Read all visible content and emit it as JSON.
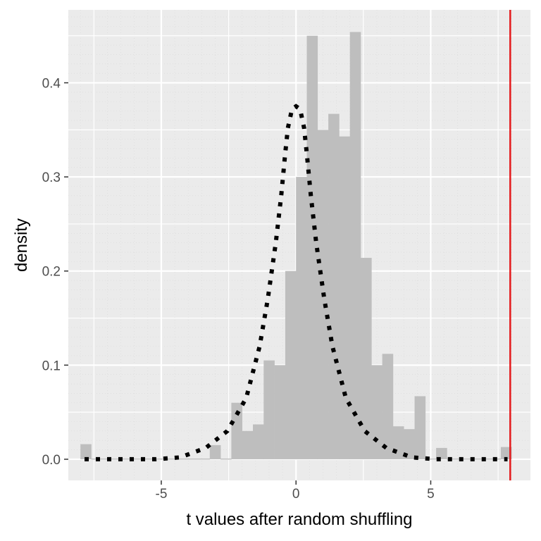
{
  "chart_data": {
    "type": "histogram",
    "title": "",
    "xlabel": "t values after random shuffling",
    "ylabel": "density",
    "xlim": [
      -8.45,
      8.7
    ],
    "ylim": [
      -0.0225,
      0.4775
    ],
    "x_ticks": [
      -5,
      0,
      5
    ],
    "x_tick_labels": [
      "-5",
      "0",
      "5"
    ],
    "y_ticks": [
      0.0,
      0.1,
      0.2,
      0.3,
      0.4
    ],
    "y_tick_labels": [
      "0.0",
      "0.1",
      "0.2",
      "0.3",
      "0.4"
    ],
    "grid": true,
    "histogram": {
      "bin_width": 0.4,
      "bins": [
        {
          "x0": -8.0,
          "x1": -7.6,
          "density": 0.016
        },
        {
          "x0": -7.6,
          "x1": -7.2,
          "density": 0.0
        },
        {
          "x0": -7.2,
          "x1": -6.8,
          "density": 0.0
        },
        {
          "x0": -6.8,
          "x1": -6.4,
          "density": 0.0
        },
        {
          "x0": -6.4,
          "x1": -6.0,
          "density": 0.0
        },
        {
          "x0": -6.0,
          "x1": -5.6,
          "density": 0.0
        },
        {
          "x0": -5.6,
          "x1": -5.2,
          "density": 0.0
        },
        {
          "x0": -5.2,
          "x1": -4.8,
          "density": 0.0
        },
        {
          "x0": -4.8,
          "x1": -4.4,
          "density": 0.0
        },
        {
          "x0": -4.4,
          "x1": -4.0,
          "density": 0.0
        },
        {
          "x0": -4.0,
          "x1": -3.6,
          "density": 0.0
        },
        {
          "x0": -3.6,
          "x1": -3.2,
          "density": 0.0
        },
        {
          "x0": -3.2,
          "x1": -2.8,
          "density": 0.015
        },
        {
          "x0": -2.8,
          "x1": -2.4,
          "density": 0.0
        },
        {
          "x0": -2.4,
          "x1": -2.0,
          "density": 0.06
        },
        {
          "x0": -2.0,
          "x1": -1.6,
          "density": 0.03
        },
        {
          "x0": -1.6,
          "x1": -1.2,
          "density": 0.037
        },
        {
          "x0": -1.2,
          "x1": -0.8,
          "density": 0.105
        },
        {
          "x0": -0.8,
          "x1": -0.4,
          "density": 0.1
        },
        {
          "x0": -0.4,
          "x1": 0.0,
          "density": 0.2
        },
        {
          "x0": 0.0,
          "x1": 0.4,
          "density": 0.3
        },
        {
          "x0": 0.4,
          "x1": 0.8,
          "density": 0.45
        },
        {
          "x0": 0.8,
          "x1": 1.2,
          "density": 0.35
        },
        {
          "x0": 1.2,
          "x1": 1.6,
          "density": 0.367
        },
        {
          "x0": 1.6,
          "x1": 2.0,
          "density": 0.343
        },
        {
          "x0": 2.0,
          "x1": 2.4,
          "density": 0.454
        },
        {
          "x0": 2.4,
          "x1": 2.8,
          "density": 0.214
        },
        {
          "x0": 2.8,
          "x1": 3.2,
          "density": 0.1
        },
        {
          "x0": 3.2,
          "x1": 3.6,
          "density": 0.112
        },
        {
          "x0": 3.6,
          "x1": 4.0,
          "density": 0.035
        },
        {
          "x0": 4.0,
          "x1": 4.4,
          "density": 0.032
        },
        {
          "x0": 4.4,
          "x1": 4.8,
          "density": 0.067
        },
        {
          "x0": 4.8,
          "x1": 5.2,
          "density": 0.0
        },
        {
          "x0": 5.2,
          "x1": 5.6,
          "density": 0.012
        },
        {
          "x0": 5.6,
          "x1": 6.0,
          "density": 0.0
        },
        {
          "x0": 6.0,
          "x1": 6.4,
          "density": 0.0
        },
        {
          "x0": 6.4,
          "x1": 6.8,
          "density": 0.0
        },
        {
          "x0": 6.8,
          "x1": 7.2,
          "density": 0.0
        },
        {
          "x0": 7.2,
          "x1": 7.6,
          "density": 0.0
        },
        {
          "x0": 7.6,
          "x1": 8.0,
          "density": 0.013
        }
      ]
    },
    "density_curve": {
      "style": "dotted",
      "color": "#000000",
      "x": [
        -7.85,
        -7.0,
        -6.1,
        -5.2,
        -4.3,
        -3.35,
        -2.55,
        -1.85,
        -1.35,
        -1.05,
        -0.75,
        -0.55,
        -0.4,
        -0.3,
        -0.15,
        0.0,
        0.15,
        0.3,
        0.4,
        0.55,
        0.75,
        1.05,
        1.35,
        1.85,
        2.55,
        3.35,
        4.3,
        5.2,
        6.1,
        7.0,
        7.85
      ],
      "y": [
        0.0,
        0.0,
        0.0,
        0.0,
        0.002,
        0.012,
        0.03,
        0.065,
        0.12,
        0.17,
        0.23,
        0.28,
        0.325,
        0.352,
        0.372,
        0.375,
        0.372,
        0.352,
        0.325,
        0.28,
        0.23,
        0.17,
        0.12,
        0.065,
        0.03,
        0.012,
        0.002,
        0.0,
        0.0,
        0.0,
        0.0
      ]
    },
    "reference_line": {
      "x": 7.95,
      "color": "#e41a1c"
    },
    "colors": {
      "panel_bg": "#ebebeb",
      "grid": "#ffffff",
      "bars": "#bebebe",
      "tick": "#333333"
    }
  }
}
